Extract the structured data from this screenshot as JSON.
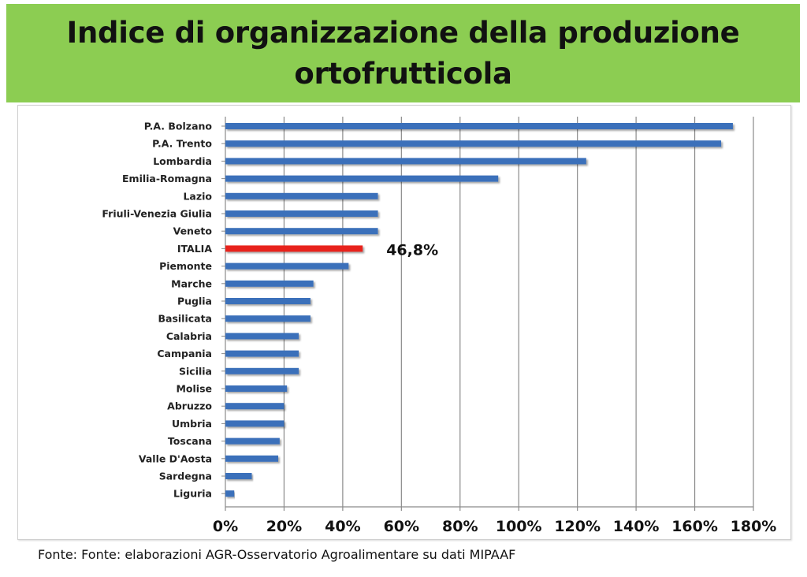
{
  "slide": {
    "title": "Indice di organizzazione della produzione ortofrutticola",
    "source": "Fonte: Fonte: elaborazioni AGR-Osservatorio Agroalimentare su dati MIPAAF"
  },
  "chart_data": {
    "type": "bar",
    "orientation": "horizontal",
    "title": "",
    "xlabel": "",
    "ylabel": "",
    "categories": [
      "P.A. Bolzano",
      "P.A. Trento",
      "Lombardia",
      "Emilia-Romagna",
      "Lazio",
      "Friuli-Venezia Giulia",
      "Veneto",
      "ITALIA",
      "Piemonte",
      "Marche",
      "Puglia",
      "Basilicata",
      "Calabria",
      "Campania",
      "Sicilia",
      "Molise",
      "Abruzzo",
      "Umbria",
      "Toscana",
      "Valle D'Aosta",
      "Sardegna",
      "Liguria"
    ],
    "values": [
      173,
      169,
      123,
      93,
      52,
      52,
      52,
      46.8,
      42,
      30,
      29,
      29,
      25,
      25,
      25,
      21,
      20,
      20,
      18.5,
      18,
      9,
      3
    ],
    "xlim": [
      0,
      180
    ],
    "xticks": [
      "0%",
      "20%",
      "40%",
      "60%",
      "80%",
      "100%",
      "120%",
      "140%",
      "160%",
      "180%"
    ],
    "grid": "vertical",
    "highlight": {
      "category": "ITALIA",
      "label": "46,8%",
      "color": "#e8201a"
    },
    "bar_color": "#3b70ba"
  }
}
